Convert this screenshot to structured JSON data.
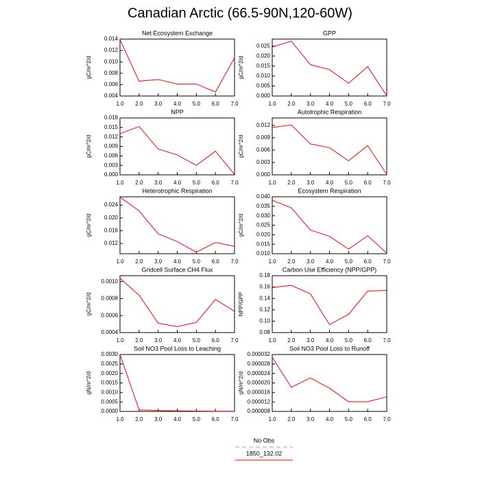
{
  "title": "Canadian Arctic (66.5-90N,120-60W)",
  "legend": [
    {
      "name": "No Obs",
      "color": "#9999ff",
      "dash": true
    },
    {
      "name": "1850_132.02",
      "color": "#ff0000"
    }
  ],
  "chart_data": [
    {
      "type": "line",
      "title": "Net Ecosystem Exchange",
      "y_label": "gC/m^2/d",
      "x": [
        1,
        2,
        3,
        4,
        5,
        6,
        7
      ],
      "xlim": [
        1,
        7
      ],
      "xticks": [
        {
          "value": 1,
          "label": "1.0"
        },
        {
          "value": 2,
          "label": "2.0"
        },
        {
          "value": 3,
          "label": "3.0"
        },
        {
          "value": 4,
          "label": "4.0"
        },
        {
          "value": 5,
          "label": "5.0"
        },
        {
          "value": 6,
          "label": "6.0"
        },
        {
          "value": 7,
          "label": "7.0"
        }
      ],
      "ylim": [
        0.004,
        0.014
      ],
      "yticks": [
        0.004,
        0.006,
        0.008,
        {
          "value": 0.01,
          "label": "0.010"
        },
        0.012,
        0.014
      ],
      "series": [
        {
          "color": "#ff0000",
          "values": [
            0.0139,
            0.0066,
            0.0069,
            0.0061,
            0.0061,
            0.0047,
            0.0107
          ]
        }
      ]
    },
    {
      "type": "line",
      "title": "GPP",
      "y_label": "gC/m^2/d",
      "x": [
        1,
        2,
        3,
        4,
        5,
        6,
        7
      ],
      "xlim": [
        1,
        7
      ],
      "xticks": [
        {
          "value": 1,
          "label": "1.0"
        },
        {
          "value": 2,
          "label": "2.0"
        },
        {
          "value": 3,
          "label": "3.0"
        },
        {
          "value": 4,
          "label": "4.0"
        },
        {
          "value": 5,
          "label": "5.0"
        },
        {
          "value": 6,
          "label": "6.0"
        },
        {
          "value": 7,
          "label": "7.0"
        }
      ],
      "ylim": [
        0,
        0.0285
      ],
      "yticks": [
        {
          "value": 0,
          "label": "0.000"
        },
        0.005,
        {
          "value": 0.01,
          "label": "0.010"
        },
        0.015,
        {
          "value": 0.02,
          "label": "0.020"
        },
        0.025
      ],
      "series": [
        {
          "color": "#ff0000",
          "values": [
            0.0245,
            0.0275,
            0.0157,
            0.0132,
            0.0064,
            0.0147,
            0.0001
          ]
        }
      ]
    },
    {
      "type": "line",
      "title": "NPP",
      "y_label": "gC/m^2/d",
      "x": [
        1,
        2,
        3,
        4,
        5,
        6,
        7
      ],
      "xlim": [
        1,
        7
      ],
      "xticks": [
        {
          "value": 1,
          "label": "1.0"
        },
        {
          "value": 2,
          "label": "2.0"
        },
        {
          "value": 3,
          "label": "3.0"
        },
        {
          "value": 4,
          "label": "4.0"
        },
        {
          "value": 5,
          "label": "5.0"
        },
        {
          "value": 6,
          "label": "6.0"
        },
        {
          "value": 7,
          "label": "7.0"
        }
      ],
      "ylim": [
        0,
        0.018
      ],
      "yticks": [
        {
          "value": 0,
          "label": "0.000"
        },
        0.003,
        0.006,
        0.009,
        0.012,
        0.015,
        0.018
      ],
      "series": [
        {
          "color": "#ff0000",
          "values": [
            0.013,
            0.0153,
            0.0082,
            0.0063,
            0.003,
            0.0075,
            0.0001
          ]
        }
      ]
    },
    {
      "type": "line",
      "title": "Autotrophic Respiration",
      "y_label": "gC/m^2/d",
      "x": [
        1,
        2,
        3,
        4,
        5,
        6,
        7
      ],
      "xlim": [
        1,
        7
      ],
      "xticks": [
        {
          "value": 1,
          "label": "1.0"
        },
        {
          "value": 2,
          "label": "2.0"
        },
        {
          "value": 3,
          "label": "3.0"
        },
        {
          "value": 4,
          "label": "4.0"
        },
        {
          "value": 5,
          "label": "5.0"
        },
        {
          "value": 6,
          "label": "6.0"
        },
        {
          "value": 7,
          "label": "7.0"
        }
      ],
      "ylim": [
        0,
        0.0138
      ],
      "yticks": [
        {
          "value": 0,
          "label": "0.000"
        },
        0.003,
        0.006,
        0.009,
        0.012
      ],
      "series": [
        {
          "color": "#ff0000",
          "values": [
            0.0115,
            0.0121,
            0.0075,
            0.0066,
            0.0034,
            0.0071,
            0.0001
          ]
        }
      ]
    },
    {
      "type": "line",
      "title": "Heterotrophic Respiration",
      "y_label": "gC/m^2/d",
      "x": [
        1,
        2,
        3,
        4,
        5,
        6,
        7
      ],
      "xlim": [
        1,
        7
      ],
      "xticks": [
        {
          "value": 1,
          "label": "1.0"
        },
        {
          "value": 2,
          "label": "2.0"
        },
        {
          "value": 3,
          "label": "3.0"
        },
        {
          "value": 4,
          "label": "4.0"
        },
        {
          "value": 5,
          "label": "5.0"
        },
        {
          "value": 6,
          "label": "6.0"
        },
        {
          "value": 7,
          "label": "7.0"
        }
      ],
      "ylim": [
        0.0088,
        0.0266
      ],
      "yticks": [
        0.012,
        0.016,
        {
          "value": 0.02,
          "label": "0.020"
        },
        0.024
      ],
      "series": [
        {
          "color": "#ff0000",
          "values": [
            0.0265,
            0.0222,
            0.015,
            0.0126,
            0.0093,
            0.0123,
            0.0111
          ]
        }
      ]
    },
    {
      "type": "line",
      "title": "Ecosystem Respiration",
      "y_label": "gC/m^2/d",
      "x": [
        1,
        2,
        3,
        4,
        5,
        6,
        7
      ],
      "xlim": [
        1,
        7
      ],
      "xticks": [
        {
          "value": 1,
          "label": "1.0"
        },
        {
          "value": 2,
          "label": "2.0"
        },
        {
          "value": 3,
          "label": "3.0"
        },
        {
          "value": 4,
          "label": "4.0"
        },
        {
          "value": 5,
          "label": "5.0"
        },
        {
          "value": 6,
          "label": "6.0"
        },
        {
          "value": 7,
          "label": "7.0"
        }
      ],
      "ylim": [
        0.01,
        0.04
      ],
      "yticks": [
        {
          "value": 0.01,
          "label": "0.010"
        },
        0.015,
        {
          "value": 0.02,
          "label": "0.020"
        },
        0.025,
        {
          "value": 0.03,
          "label": "0.030"
        },
        0.035,
        {
          "value": 0.04,
          "label": "0.040"
        }
      ],
      "series": [
        {
          "color": "#ff0000",
          "values": [
            0.0382,
            0.0342,
            0.0225,
            0.0192,
            0.0124,
            0.0195,
            0.0103
          ]
        }
      ]
    },
    {
      "type": "line",
      "title": "Gridcell Surface CH4 Flux",
      "y_label": "gC/m^2/d",
      "x": [
        1,
        2,
        3,
        4,
        5,
        6,
        7
      ],
      "xlim": [
        1,
        7
      ],
      "xticks": [
        {
          "value": 1,
          "label": "1.0"
        },
        {
          "value": 2,
          "label": "2.0"
        },
        {
          "value": 3,
          "label": "3.0"
        },
        {
          "value": 4,
          "label": "4.0"
        },
        {
          "value": 5,
          "label": "5.0"
        },
        {
          "value": 6,
          "label": "6.0"
        },
        {
          "value": 7,
          "label": "7.0"
        }
      ],
      "ylim": [
        0.0004,
        0.00107
      ],
      "yticks": [
        0.0004,
        0.0006,
        0.0008,
        {
          "value": 0.001,
          "label": "0.0010"
        }
      ],
      "series": [
        {
          "color": "#ff0000",
          "values": [
            0.00104,
            0.00084,
            0.00051,
            0.00047,
            0.00052,
            0.00079,
            0.00065
          ]
        }
      ]
    },
    {
      "type": "line",
      "title": "Carbon Use Efficiency (NPP/GPP)",
      "y_label": "NPP/GPP",
      "x": [
        1,
        2,
        3,
        4,
        5,
        6,
        7
      ],
      "xlim": [
        1,
        7
      ],
      "xticks": [
        {
          "value": 1,
          "label": "1.0"
        },
        {
          "value": 2,
          "label": "2.0"
        },
        {
          "value": 3,
          "label": "3.0"
        },
        {
          "value": 4,
          "label": "4.0"
        },
        {
          "value": 5,
          "label": "5.0"
        },
        {
          "value": 6,
          "label": "6.0"
        },
        {
          "value": 7,
          "label": "7.0"
        }
      ],
      "ylim": [
        0.08,
        0.18
      ],
      "yticks": [
        0.08,
        {
          "value": 0.1,
          "label": "0.10"
        },
        0.12,
        0.14,
        0.16,
        0.18
      ],
      "series": [
        {
          "color": "#ff0000",
          "values": [
            0.159,
            0.163,
            0.148,
            0.094,
            0.112,
            0.153,
            0.154
          ]
        }
      ]
    },
    {
      "type": "line",
      "title": "Soil NO3 Pool Loss to Leaching",
      "y_label": "gN/m^2/d",
      "x": [
        1,
        2,
        3,
        4,
        5,
        6,
        7
      ],
      "xlim": [
        1,
        7
      ],
      "xticks": [
        {
          "value": 1,
          "label": "1.0"
        },
        {
          "value": 2,
          "label": "2.0"
        },
        {
          "value": 3,
          "label": "3.0"
        },
        {
          "value": 4,
          "label": "4.0"
        },
        {
          "value": 5,
          "label": "5.0"
        },
        {
          "value": 6,
          "label": "6.0"
        },
        {
          "value": 7,
          "label": "7.0"
        }
      ],
      "ylim": [
        0,
        0.003
      ],
      "yticks": [
        {
          "value": 0,
          "label": "0.0000"
        },
        0.0005,
        {
          "value": 0.001,
          "label": "0.0010"
        },
        0.0015,
        {
          "value": 0.002,
          "label": "0.0020"
        },
        0.0025,
        {
          "value": 0.003,
          "label": "0.0030"
        }
      ],
      "series": [
        {
          "color": "#ff0000",
          "values": [
            0.003,
            8e-05,
            5e-05,
            3e-05,
            2e-05,
            1e-05,
            1e-05
          ]
        }
      ]
    },
    {
      "type": "line",
      "title": "Soil NO3 Pool Loss to Runoff",
      "y_label": "gN/m^2/d",
      "x": [
        1,
        2,
        3,
        4,
        5,
        6,
        7
      ],
      "xlim": [
        1,
        7
      ],
      "xticks": [
        {
          "value": 1,
          "label": "1.0"
        },
        {
          "value": 2,
          "label": "2.0"
        },
        {
          "value": 3,
          "label": "3.0"
        },
        {
          "value": 4,
          "label": "4.0"
        },
        {
          "value": 5,
          "label": "5.0"
        },
        {
          "value": 6,
          "label": "6.0"
        },
        {
          "value": 7,
          "label": "7.0"
        }
      ],
      "ylim": [
        8e-06,
        3.2e-05
      ],
      "yticks": [
        {
          "value": 8e-06,
          "label": "0.000008"
        },
        {
          "value": 1.2e-05,
          "label": "0.000012"
        },
        {
          "value": 1.6e-05,
          "label": "0.000016"
        },
        {
          "value": 2e-05,
          "label": "0.000020"
        },
        {
          "value": 2.4e-05,
          "label": "0.000024"
        },
        {
          "value": 2.8e-05,
          "label": "0.000028"
        },
        {
          "value": 3.2e-05,
          "label": "0.000032"
        }
      ],
      "series": [
        {
          "color": "#ff0000",
          "values": [
            3.08e-05,
            1.82e-05,
            2.21e-05,
            1.78e-05,
            1.21e-05,
            1.21e-05,
            1.42e-05
          ]
        }
      ]
    }
  ]
}
